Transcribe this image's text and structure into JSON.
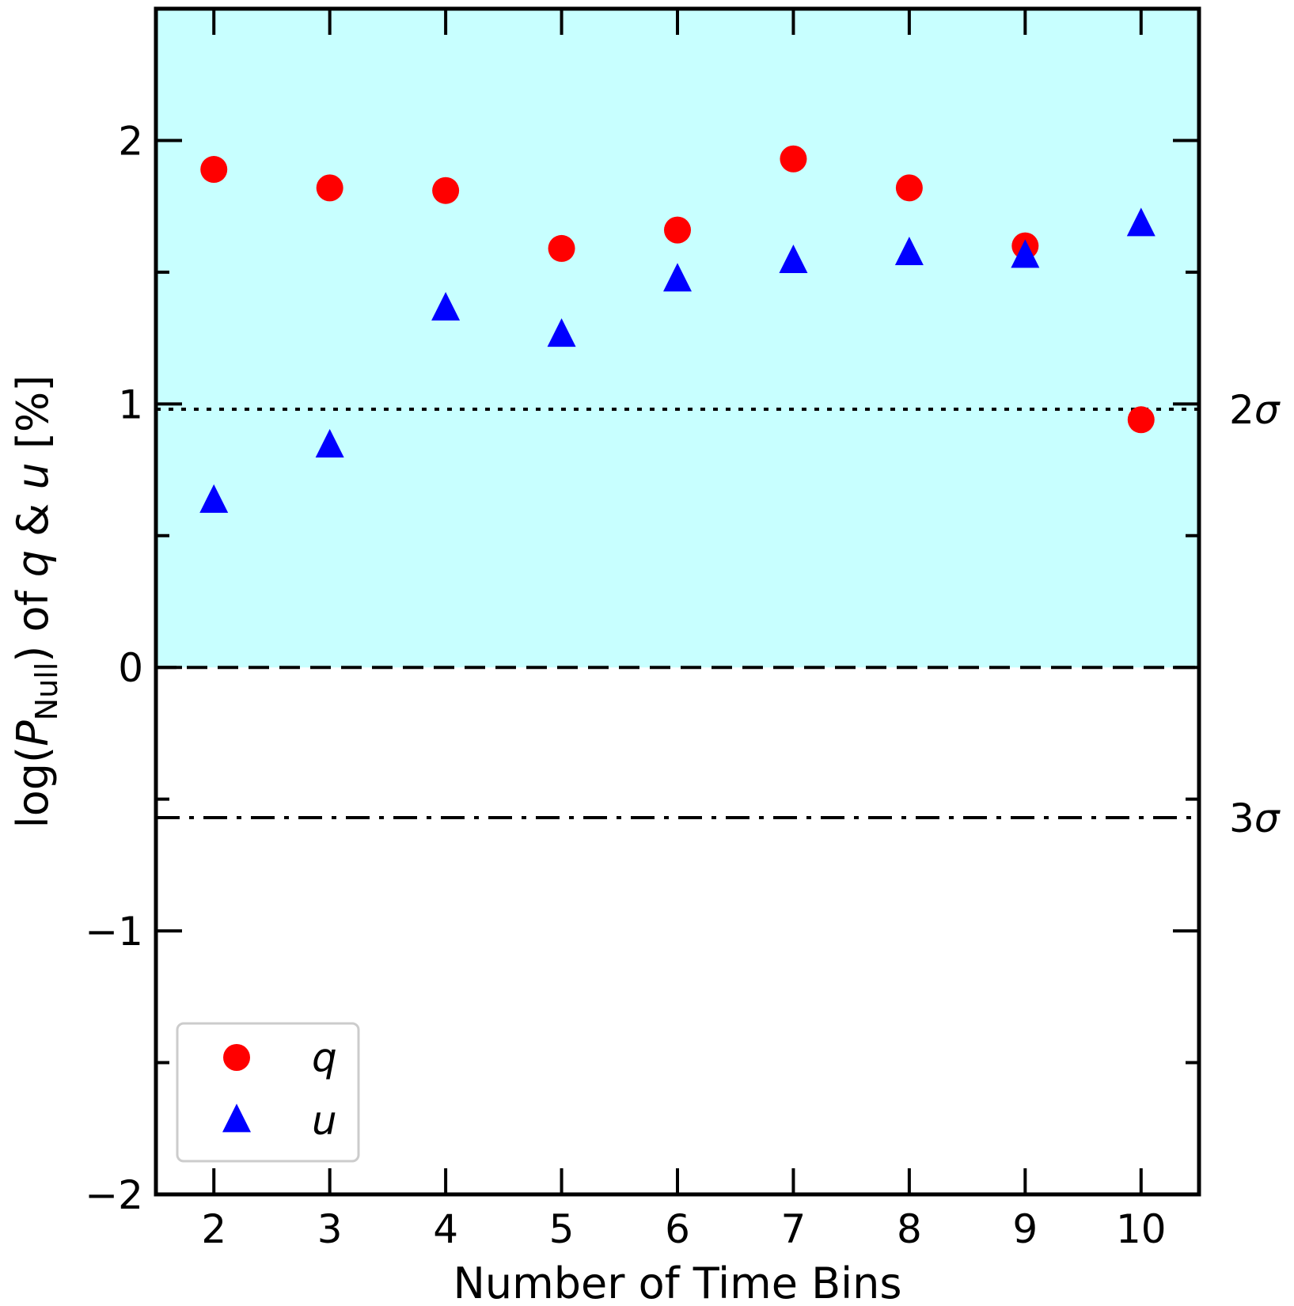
{
  "chart_data": {
    "type": "scatter",
    "xlabel": "Number of Time Bins",
    "ylabel_parts": [
      "log(",
      "P",
      "Null",
      ") of ",
      "q",
      " & ",
      "u",
      " [%]"
    ],
    "xlim": [
      1.5,
      10.5
    ],
    "ylim": [
      -2,
      2.5
    ],
    "x_ticks": [
      2,
      3,
      4,
      5,
      6,
      7,
      8,
      9,
      10
    ],
    "x_tick_labels": [
      "2",
      "3",
      "4",
      "5",
      "6",
      "7",
      "8",
      "9",
      "10"
    ],
    "y_ticks": [
      -2,
      -1,
      0,
      1,
      2
    ],
    "y_tick_labels": [
      "−2",
      "−1",
      "0",
      "1",
      "2"
    ],
    "y_minor_ticks": [
      -1.5,
      -0.5,
      0.5,
      1.5
    ],
    "shaded_region": {
      "y_from": 0,
      "y_to": 2.5,
      "color": "#c8ffff"
    },
    "reference_lines": [
      {
        "y": 0,
        "style": "dashed",
        "label": ""
      },
      {
        "y": 0.98,
        "style": "dotted",
        "label": "2σ"
      },
      {
        "y": -0.57,
        "style": "dashdot",
        "label": "3σ"
      }
    ],
    "series": [
      {
        "name": "q",
        "marker": "circle",
        "color": "#ff0000",
        "x": [
          2,
          3,
          4,
          5,
          6,
          7,
          8,
          9,
          10
        ],
        "y": [
          1.89,
          1.82,
          1.81,
          1.59,
          1.66,
          1.93,
          1.82,
          1.6,
          0.94
        ]
      },
      {
        "name": "u",
        "marker": "triangle",
        "color": "#0000ff",
        "x": [
          2,
          3,
          4,
          5,
          6,
          7,
          8,
          9,
          10
        ],
        "y": [
          0.63,
          0.84,
          1.36,
          1.26,
          1.47,
          1.54,
          1.57,
          1.56,
          1.68
        ]
      }
    ],
    "legend": {
      "position": "lower-left",
      "entries": [
        "q",
        "u"
      ]
    },
    "grid": false
  }
}
